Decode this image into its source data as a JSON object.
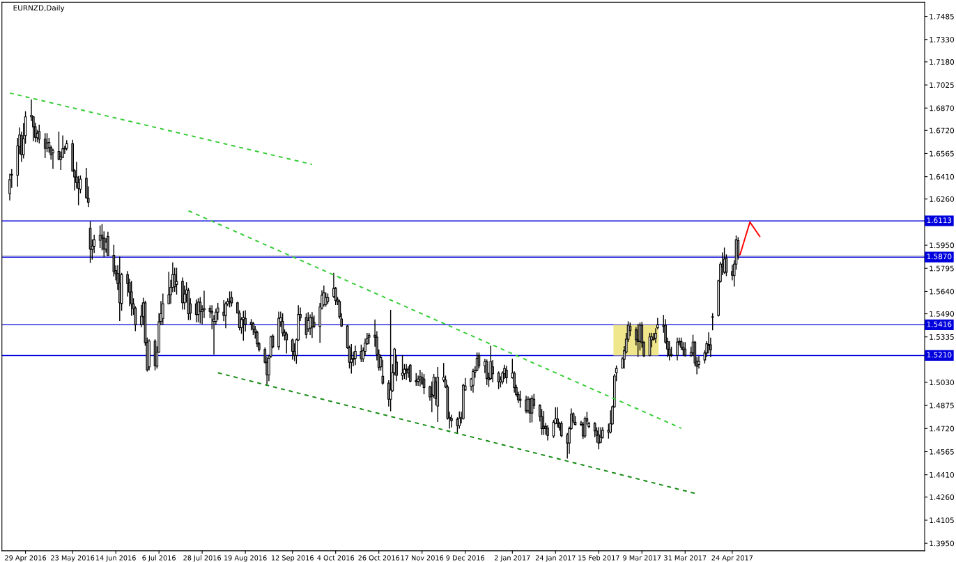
{
  "chart_data": {
    "type": "candlestick",
    "title": "EURNZD,Daily",
    "color": "#000000",
    "colors": [
      "#ffffff",
      "#ffffff",
      "#ffffff",
      "#ffffff",
      "#808080",
      "#ffffff",
      "#ffffff",
      "#ffffff",
      "#808080",
      "#808080",
      "#ffffff",
      "#808080",
      "#808080",
      "#ffffff",
      "#ffffff",
      "#808080",
      "#ffffff",
      "#808080",
      "#ffffff",
      "#ffffff",
      "#ffffff",
      "#ffffff",
      "#808080",
      "#808080",
      "#808080",
      "#808080",
      "#ffffff",
      "#808080",
      "#808080",
      "#808080",
      "#ffffff",
      "#ffffff",
      "#ffffff",
      "#808080",
      "#808080",
      "#ffffff",
      "#808080",
      "#808080",
      "#808080",
      "#808080",
      "#808080",
      "#ffffff",
      "#808080",
      "#808080",
      "#808080",
      "#808080",
      "#808080",
      "#ffffff",
      "#ffffff",
      "#808080",
      "#808080",
      "#ffffff",
      "#808080",
      "#ffffff",
      "#ffffff",
      "#ffffff",
      "#ffffff",
      "#ffffff",
      "#ffffff",
      "#ffffff",
      "#808080",
      "#ffffff",
      "#808080",
      "#ffffff",
      "#ffffff",
      "#808080",
      "#808080",
      "#808080",
      "#ffffff",
      "#808080",
      "#ffffff",
      "#ffffff",
      "#808080",
      "#808080",
      "#ffffff",
      "#ffffff",
      "#ffffff",
      "#808080",
      "#ffffff",
      "#ffffff",
      "#ffffff",
      "#808080",
      "#808080",
      "#808080",
      "#ffffff",
      "#ffffff",
      "#808080",
      "#808080",
      "#808080",
      "#808080",
      "#808080",
      "#808080",
      "#808080",
      "#808080",
      "#ffffff",
      "#ffffff",
      "#808080",
      "#ffffff",
      "#ffffff",
      "#808080",
      "#808080",
      "#808080",
      "#808080",
      "#808080",
      "#ffffff",
      "#ffffff",
      "#808080",
      "#808080",
      "#ffffff",
      "#ffffff",
      "#808080",
      "#808080",
      "#ffffff",
      "#ffffff",
      "#ffffff",
      "#ffffff",
      "#ffffff",
      "#ffffff",
      "#808080",
      "#808080",
      "#808080",
      "#808080",
      "#808080",
      "#808080",
      "#ffffff",
      "#ffffff",
      "#ffffff",
      "#808080",
      "#ffffff",
      "#ffffff",
      "#ffffff",
      "#ffffff",
      "#808080",
      "#808080",
      "#808080",
      "#ffffff",
      "#808080",
      "#808080",
      "#ffffff",
      "#ffffff",
      "#ffffff",
      "#808080",
      "#ffffff",
      "#ffffff",
      "#808080",
      "#808080",
      "#808080",
      "#808080",
      "#ffffff",
      "#ffffff",
      "#808080",
      "#808080",
      "#808080",
      "#808080",
      "#ffffff",
      "#808080",
      "#ffffff",
      "#ffffff",
      "#808080",
      "#808080",
      "#ffffff",
      "#808080",
      "#808080",
      "#ffffff",
      "#ffffff",
      "#ffffff",
      "#ffffff",
      "#ffffff",
      "#ffffff",
      "#ffffff",
      "#ffffff",
      "#808080",
      "#ffffff",
      "#808080",
      "#808080",
      "#ffffff",
      "#808080",
      "#808080",
      "#ffffff",
      "#ffffff",
      "#ffffff",
      "#808080",
      "#ffffff",
      "#808080",
      "#808080",
      "#808080",
      "#808080",
      "#808080",
      "#ffffff",
      "#808080",
      "#ffffff",
      "#808080",
      "#808080",
      "#808080",
      "#808080",
      "#808080",
      "#808080",
      "#ffffff",
      "#ffffff",
      "#808080",
      "#808080",
      "#808080",
      "#808080",
      "#ffffff",
      "#ffffff",
      "#808080",
      "#808080",
      "#ffffff",
      "#808080",
      "#ffffff",
      "#808080",
      "#ffffff",
      "#808080",
      "#808080",
      "#808080",
      "#ffffff",
      "#ffffff",
      "#808080",
      "#ffffff",
      "#ffffff",
      "#ffffff",
      "#ffffff",
      "#ffffff",
      "#ffffff",
      "#ffffff",
      "#ffffff",
      "#808080",
      "#808080",
      "#808080",
      "#ffffff",
      "#808080",
      "#808080",
      "#ffffff",
      "#ffffff",
      "#ffffff",
      "#ffffff",
      "#ffffff",
      "#808080",
      "#808080",
      "#808080",
      "#808080",
      "#808080",
      "#ffffff",
      "#ffffff",
      "#808080",
      "#808080",
      "#808080",
      "#ffffff",
      "#ffffff",
      "#808080",
      "#808080",
      "#ffffff",
      "#ffffff",
      "#ffffff",
      "#ffffff",
      "#808080",
      "#ffffff",
      "#ffffff",
      "#ffffff",
      "#808080",
      "#ffffff",
      "#808080",
      "#808080",
      "#ffffff",
      "#ffffff",
      "#808080"
    ],
    "x": [
      "2016-04-21",
      "2016-04-22",
      "2016-04-25",
      "2016-04-26",
      "2016-04-27",
      "2016-04-28",
      "2016-04-29",
      "2016-05-02",
      "2016-05-03",
      "2016-05-04",
      "2016-05-05",
      "2016-05-06",
      "2016-05-09",
      "2016-05-10",
      "2016-05-11",
      "2016-05-12",
      "2016-05-13",
      "2016-05-16",
      "2016-05-17",
      "2016-05-18",
      "2016-05-19",
      "2016-05-20",
      "2016-05-23",
      "2016-05-24",
      "2016-05-25",
      "2016-05-26",
      "2016-05-27",
      "2016-05-30",
      "2016-05-31",
      "2016-06-01",
      "2016-06-02",
      "2016-06-03",
      "2016-06-06",
      "2016-06-07",
      "2016-06-08",
      "2016-06-09",
      "2016-06-10",
      "2016-06-13",
      "2016-06-14",
      "2016-06-15",
      "2016-06-16",
      "2016-06-17",
      "2016-06-20",
      "2016-06-21",
      "2016-06-22",
      "2016-06-23",
      "2016-06-24",
      "2016-06-27",
      "2016-06-28",
      "2016-06-29",
      "2016-06-30",
      "2016-07-01",
      "2016-07-04",
      "2016-07-05",
      "2016-07-06",
      "2016-07-07",
      "2016-07-08",
      "2016-07-11",
      "2016-07-12",
      "2016-07-13",
      "2016-07-14",
      "2016-07-15",
      "2016-07-18",
      "2016-07-19",
      "2016-07-20",
      "2016-07-21",
      "2016-07-22",
      "2016-07-25",
      "2016-07-26",
      "2016-07-27",
      "2016-07-28",
      "2016-07-29",
      "2016-08-01",
      "2016-08-02",
      "2016-08-03",
      "2016-08-04",
      "2016-08-05",
      "2016-08-08",
      "2016-08-09",
      "2016-08-10",
      "2016-08-11",
      "2016-08-12",
      "2016-08-15",
      "2016-08-16",
      "2016-08-17",
      "2016-08-18",
      "2016-08-19",
      "2016-08-22",
      "2016-08-23",
      "2016-08-24",
      "2016-08-25",
      "2016-08-26",
      "2016-08-29",
      "2016-08-30",
      "2016-08-31",
      "2016-09-01",
      "2016-09-02",
      "2016-09-05",
      "2016-09-06",
      "2016-09-07",
      "2016-09-08",
      "2016-09-09",
      "2016-09-12",
      "2016-09-13",
      "2016-09-14",
      "2016-09-15",
      "2016-09-16",
      "2016-09-19",
      "2016-09-20",
      "2016-09-21",
      "2016-09-22",
      "2016-09-23",
      "2016-09-26",
      "2016-09-27",
      "2016-09-28",
      "2016-09-29",
      "2016-09-30",
      "2016-10-03",
      "2016-10-04",
      "2016-10-05",
      "2016-10-06",
      "2016-10-07",
      "2016-10-10",
      "2016-10-11",
      "2016-10-12",
      "2016-10-13",
      "2016-10-14",
      "2016-10-17",
      "2016-10-18",
      "2016-10-19",
      "2016-10-20",
      "2016-10-21",
      "2016-10-24",
      "2016-10-25",
      "2016-10-26",
      "2016-10-27",
      "2016-10-28",
      "2016-10-31",
      "2016-11-01",
      "2016-11-02",
      "2016-11-03",
      "2016-11-04",
      "2016-11-07",
      "2016-11-08",
      "2016-11-09",
      "2016-11-10",
      "2016-11-11",
      "2016-11-14",
      "2016-11-15",
      "2016-11-16",
      "2016-11-17",
      "2016-11-18",
      "2016-11-21",
      "2016-11-22",
      "2016-11-23",
      "2016-11-24",
      "2016-11-25",
      "2016-11-28",
      "2016-11-29",
      "2016-11-30",
      "2016-12-01",
      "2016-12-02",
      "2016-12-05",
      "2016-12-06",
      "2016-12-07",
      "2016-12-08",
      "2016-12-09",
      "2016-12-12",
      "2016-12-13",
      "2016-12-14",
      "2016-12-15",
      "2016-12-16",
      "2016-12-19",
      "2016-12-20",
      "2016-12-21",
      "2016-12-22",
      "2016-12-23",
      "2016-12-26",
      "2016-12-27",
      "2016-12-28",
      "2016-12-29",
      "2016-12-30",
      "2017-01-02",
      "2017-01-03",
      "2017-01-04",
      "2017-01-05",
      "2017-01-06",
      "2017-01-09",
      "2017-01-10",
      "2017-01-11",
      "2017-01-12",
      "2017-01-13",
      "2017-01-16",
      "2017-01-17",
      "2017-01-18",
      "2017-01-19",
      "2017-01-20",
      "2017-01-23",
      "2017-01-24",
      "2017-01-25",
      "2017-01-26",
      "2017-01-27",
      "2017-01-30",
      "2017-01-31",
      "2017-02-01",
      "2017-02-02",
      "2017-02-03",
      "2017-02-06",
      "2017-02-07",
      "2017-02-08",
      "2017-02-09",
      "2017-02-10",
      "2017-02-13",
      "2017-02-14",
      "2017-02-15",
      "2017-02-16",
      "2017-02-17",
      "2017-02-20",
      "2017-02-21",
      "2017-02-22",
      "2017-02-23",
      "2017-02-24",
      "2017-02-27",
      "2017-02-28",
      "2017-03-01",
      "2017-03-02",
      "2017-03-03",
      "2017-03-06",
      "2017-03-07",
      "2017-03-08",
      "2017-03-09",
      "2017-03-10",
      "2017-03-13",
      "2017-03-14",
      "2017-03-15",
      "2017-03-16",
      "2017-03-17",
      "2017-03-20",
      "2017-03-21",
      "2017-03-22",
      "2017-03-23",
      "2017-03-24",
      "2017-03-27",
      "2017-03-28",
      "2017-03-29",
      "2017-03-30",
      "2017-03-31",
      "2017-04-03",
      "2017-04-04",
      "2017-04-05",
      "2017-04-06",
      "2017-04-07",
      "2017-04-10",
      "2017-04-11",
      "2017-04-12",
      "2017-04-13",
      "2017-04-14",
      "2017-04-17",
      "2017-04-18",
      "2017-04-19",
      "2017-04-20",
      "2017-04-21",
      "2017-04-24",
      "2017-04-25",
      "2017-04-26",
      "2017-04-27"
    ],
    "ohlc": [
      [
        1.6296,
        1.6427,
        1.6254,
        1.6389
      ],
      [
        1.642,
        1.6458,
        1.6338,
        1.6425
      ],
      [
        1.6419,
        1.6667,
        1.6346,
        1.6616
      ],
      [
        1.6613,
        1.6737,
        1.6563,
        1.669
      ],
      [
        1.6685,
        1.6709,
        1.6512,
        1.6558
      ],
      [
        1.6558,
        1.6765,
        1.6535,
        1.6664
      ],
      [
        1.6685,
        1.6845,
        1.6633,
        1.6811
      ],
      [
        1.6811,
        1.6925,
        1.6786,
        1.6822
      ],
      [
        1.6811,
        1.6814,
        1.6651,
        1.6744
      ],
      [
        1.6744,
        1.6768,
        1.6644,
        1.6674
      ],
      [
        1.6671,
        1.6721,
        1.6644,
        1.6701
      ],
      [
        1.6713,
        1.6755,
        1.6636,
        1.6662
      ],
      [
        1.6662,
        1.6698,
        1.6538,
        1.66
      ],
      [
        1.66,
        1.6698,
        1.6579,
        1.6636
      ],
      [
        1.6605,
        1.6667,
        1.6574,
        1.6639
      ],
      [
        1.6605,
        1.6616,
        1.6527,
        1.6558
      ],
      [
        1.657,
        1.6594,
        1.6465,
        1.6585
      ],
      [
        1.6579,
        1.6709,
        1.6523,
        1.6527
      ],
      [
        1.6527,
        1.6574,
        1.6458,
        1.6543
      ],
      [
        1.654,
        1.6683,
        1.654,
        1.6597
      ],
      [
        1.6595,
        1.6613,
        1.6566,
        1.66
      ],
      [
        1.66,
        1.6651,
        1.6589,
        1.6631
      ],
      [
        1.6631,
        1.6654,
        1.6447,
        1.6447
      ],
      [
        1.645,
        1.6458,
        1.6321,
        1.6408
      ],
      [
        1.6408,
        1.6505,
        1.6334,
        1.637
      ],
      [
        1.637,
        1.6411,
        1.6221,
        1.6331
      ],
      [
        1.6326,
        1.6414,
        1.6302,
        1.6393
      ],
      [
        1.6399,
        1.6466,
        1.6265,
        1.6268
      ],
      [
        1.6265,
        1.6342,
        1.621,
        1.6238
      ],
      [
        1.6063,
        1.6105,
        1.5834,
        1.5924
      ],
      [
        1.5922,
        1.5986,
        1.5857,
        1.5944
      ],
      [
        1.5943,
        1.6017,
        1.5901,
        1.5986
      ],
      [
        1.5983,
        1.6079,
        1.5935,
        1.6017
      ],
      [
        1.6017,
        1.6089,
        1.5919,
        1.5998
      ],
      [
        1.5998,
        1.604,
        1.5873,
        1.5924
      ],
      [
        1.5924,
        1.5994,
        1.5904,
        1.5971
      ],
      [
        1.6009,
        1.6037,
        1.5882,
        1.5882
      ],
      [
        1.5882,
        1.595,
        1.5743,
        1.5773
      ],
      [
        1.578,
        1.5811,
        1.5718,
        1.5758
      ],
      [
        1.5761,
        1.5813,
        1.5653,
        1.5692
      ],
      [
        1.5696,
        1.587,
        1.5444,
        1.5564
      ],
      [
        1.556,
        1.5761,
        1.5513,
        1.5753
      ],
      [
        1.5753,
        1.5773,
        1.5609,
        1.5692
      ],
      [
        1.5699,
        1.5722,
        1.5544,
        1.5634
      ],
      [
        1.5637,
        1.5707,
        1.5479,
        1.5557
      ],
      [
        1.5557,
        1.5591,
        1.5485,
        1.5524
      ],
      [
        1.5529,
        1.5536,
        1.5377,
        1.5417
      ],
      [
        1.5417,
        1.5547,
        1.5402,
        1.5474
      ],
      [
        1.547,
        1.5594,
        1.5417,
        1.5563
      ],
      [
        1.5563,
        1.5575,
        1.5278,
        1.5297
      ],
      [
        1.5297,
        1.5327,
        1.5106,
        1.5114
      ],
      [
        1.5134,
        1.5315,
        1.5114,
        1.5307
      ],
      [
        1.5307,
        1.5315,
        1.5114,
        1.5141
      ],
      [
        1.5139,
        1.5269,
        1.5126,
        1.5232
      ],
      [
        1.5232,
        1.549,
        1.5232,
        1.5436
      ],
      [
        1.5439,
        1.5572,
        1.5417,
        1.549
      ],
      [
        1.5459,
        1.5622,
        1.542,
        1.5557
      ],
      [
        1.5557,
        1.5769,
        1.5557,
        1.5617
      ],
      [
        1.5617,
        1.5715,
        1.556,
        1.5668
      ],
      [
        1.5668,
        1.5831,
        1.5637,
        1.5753
      ],
      [
        1.5753,
        1.5795,
        1.5641,
        1.5671
      ],
      [
        1.5687,
        1.5795,
        1.5622,
        1.5707
      ],
      [
        1.5707,
        1.573,
        1.5521,
        1.5564
      ],
      [
        1.5564,
        1.5676,
        1.5521,
        1.5622
      ],
      [
        1.5622,
        1.5699,
        1.5568,
        1.565
      ],
      [
        1.5645,
        1.566,
        1.5451,
        1.549
      ],
      [
        1.5557,
        1.5591,
        1.5451,
        1.5495
      ],
      [
        1.5557,
        1.5583,
        1.5436,
        1.5485
      ],
      [
        1.5485,
        1.5591,
        1.5436,
        1.5568
      ],
      [
        1.5568,
        1.5599,
        1.5428,
        1.5506
      ],
      [
        1.5506,
        1.5544,
        1.5423,
        1.5517
      ],
      [
        1.5517,
        1.5641,
        1.5464,
        1.5526
      ],
      [
        1.5526,
        1.5544,
        1.5464,
        1.5506
      ],
      [
        1.5506,
        1.5544,
        1.539,
        1.5495
      ],
      [
        1.5439,
        1.5479,
        1.5219,
        1.5454
      ],
      [
        1.5439,
        1.5521,
        1.542,
        1.5501
      ],
      [
        1.5501,
        1.556,
        1.5451,
        1.5529
      ],
      [
        1.5501,
        1.5578,
        1.5443,
        1.5479
      ],
      [
        1.5479,
        1.5568,
        1.5397,
        1.5557
      ],
      [
        1.5557,
        1.5591,
        1.5545,
        1.5572
      ],
      [
        1.5568,
        1.5637,
        1.5536,
        1.5575
      ],
      [
        1.5599,
        1.5637,
        1.5541,
        1.5563
      ],
      [
        1.5563,
        1.5568,
        1.5495,
        1.5495
      ],
      [
        1.5495,
        1.551,
        1.5382,
        1.5397
      ],
      [
        1.5397,
        1.5464,
        1.5359,
        1.5451
      ],
      [
        1.5451,
        1.5506,
        1.5312,
        1.5464
      ],
      [
        1.5459,
        1.551,
        1.5374,
        1.542
      ],
      [
        1.5433,
        1.5451,
        1.5382,
        1.542
      ],
      [
        1.5423,
        1.5433,
        1.5351,
        1.5386
      ],
      [
        1.5386,
        1.5405,
        1.5327,
        1.5366
      ],
      [
        1.5366,
        1.5374,
        1.527,
        1.5289
      ],
      [
        1.5289,
        1.5297,
        1.524,
        1.525
      ],
      [
        1.525,
        1.5262,
        1.516,
        1.5165
      ],
      [
        1.5165,
        1.52,
        1.5018,
        1.508
      ],
      [
        1.508,
        1.5211,
        1.5041,
        1.5191
      ],
      [
        1.5206,
        1.534,
        1.5197,
        1.5335
      ],
      [
        1.534,
        1.5349,
        1.5261,
        1.5269
      ],
      [
        1.5269,
        1.5501,
        1.525,
        1.5459
      ],
      [
        1.5436,
        1.5501,
        1.5405,
        1.5464
      ],
      [
        1.5439,
        1.549,
        1.534,
        1.5362
      ],
      [
        1.5366,
        1.5382,
        1.5315,
        1.5346
      ],
      [
        1.5355,
        1.5366,
        1.5227,
        1.5315
      ],
      [
        1.5315,
        1.532,
        1.5185,
        1.5238
      ],
      [
        1.5238,
        1.5289,
        1.5176,
        1.5211
      ],
      [
        1.5211,
        1.532,
        1.5157,
        1.5315
      ],
      [
        1.5315,
        1.5544,
        1.531,
        1.5485
      ],
      [
        1.5485,
        1.5529,
        1.5444,
        1.5464
      ],
      [
        1.5464,
        1.549,
        1.5327,
        1.5351
      ],
      [
        1.539,
        1.5498,
        1.5371,
        1.5444
      ],
      [
        1.5394,
        1.5482,
        1.5351,
        1.5464
      ],
      [
        1.5464,
        1.5498,
        1.5331,
        1.5402
      ],
      [
        1.5433,
        1.5475,
        1.5397,
        1.5405
      ],
      [
        1.5405,
        1.556,
        1.5299,
        1.5536
      ],
      [
        1.5529,
        1.5645,
        1.5521,
        1.5614
      ],
      [
        1.5552,
        1.5676,
        1.5541,
        1.563
      ],
      [
        1.5552,
        1.563,
        1.5541,
        1.5599
      ],
      [
        1.5572,
        1.5623,
        1.556,
        1.5599
      ],
      [
        1.5606,
        1.5761,
        1.56,
        1.566
      ],
      [
        1.566,
        1.5667,
        1.5552,
        1.5578
      ],
      [
        1.5583,
        1.5599,
        1.5552,
        1.5571
      ],
      [
        1.5572,
        1.558,
        1.546,
        1.547
      ],
      [
        1.5455,
        1.549,
        1.5405,
        1.5408
      ],
      [
        1.5408,
        1.5413,
        1.5258,
        1.5262
      ],
      [
        1.5262,
        1.5273,
        1.5126,
        1.5165
      ],
      [
        1.5165,
        1.5284,
        1.5092,
        1.5185
      ],
      [
        1.5185,
        1.5234,
        1.5141,
        1.5191
      ],
      [
        1.5191,
        1.5273,
        1.5149,
        1.5238
      ],
      [
        1.5238,
        1.528,
        1.5169,
        1.5188
      ],
      [
        1.5188,
        1.5262,
        1.5169,
        1.5242
      ],
      [
        1.5238,
        1.532,
        1.5211,
        1.5293
      ],
      [
        1.5289,
        1.5359,
        1.5285,
        1.5325
      ],
      [
        1.5333,
        1.5359,
        1.5289,
        1.5346
      ],
      [
        1.5346,
        1.5448,
        1.5273,
        1.5333
      ],
      [
        1.5333,
        1.537,
        1.5181,
        1.5219
      ],
      [
        1.5219,
        1.5247,
        1.5111,
        1.5129
      ],
      [
        1.5134,
        1.521,
        1.5111,
        1.5196
      ],
      [
        1.5071,
        1.5178,
        1.5017,
        1.5025
      ],
      [
        1.5025,
        1.5041,
        1.4871,
        1.4917
      ],
      [
        1.4917,
        1.5513,
        1.4839,
        1.4979
      ],
      [
        1.4974,
        1.5149,
        1.4969,
        1.5095
      ],
      [
        1.5095,
        1.5258,
        1.508,
        1.5253
      ],
      [
        1.5165,
        1.521,
        1.5041,
        1.5077
      ],
      [
        1.5077,
        1.521,
        1.5048,
        1.5092
      ],
      [
        1.5088,
        1.5149,
        1.5056,
        1.5118
      ],
      [
        1.5118,
        1.515,
        1.5048,
        1.5111
      ],
      [
        1.5118,
        1.5134,
        1.5064,
        1.5092
      ],
      [
        1.5145,
        1.515,
        1.5033,
        1.5037
      ],
      [
        1.5041,
        1.5089,
        1.501,
        1.5033
      ],
      [
        1.5037,
        1.5072,
        1.501,
        1.5052
      ],
      [
        1.5052,
        1.5111,
        1.5005,
        1.5067
      ],
      [
        1.5064,
        1.5095,
        1.5015,
        1.5025
      ],
      [
        1.5052,
        1.5083,
        1.4953,
        1.4995
      ],
      [
        1.4999,
        1.5005,
        1.4909,
        1.4932
      ],
      [
        1.4948,
        1.5033,
        1.4832,
        1.4937
      ],
      [
        1.4943,
        1.5083,
        1.4927,
        1.5064
      ],
      [
        1.5033,
        1.5064,
        1.4878,
        1.4922
      ],
      [
        1.4871,
        1.5129,
        1.4767,
        1.5064
      ],
      [
        1.5045,
        1.5157,
        1.5033,
        1.5064
      ],
      [
        1.5045,
        1.5072,
        1.4995,
        1.4999
      ],
      [
        1.4999,
        1.501,
        1.4783,
        1.4788
      ],
      [
        1.4788,
        1.4829,
        1.4723,
        1.4795
      ],
      [
        1.4788,
        1.4809,
        1.4731,
        1.4773
      ],
      [
        1.4782,
        1.4792,
        1.4693,
        1.4739
      ],
      [
        1.4739,
        1.4832,
        1.4723,
        1.4788
      ],
      [
        1.4788,
        1.4829,
        1.4758,
        1.4795
      ],
      [
        1.4786,
        1.5018,
        1.4783,
        1.501
      ],
      [
        1.4979,
        1.5056,
        1.4977,
        1.5005
      ],
      [
        1.5002,
        1.5056,
        1.4977,
        1.5052
      ],
      [
        1.501,
        1.5118,
        1.4964,
        1.5103
      ],
      [
        1.5098,
        1.5134,
        1.5064,
        1.5111
      ],
      [
        1.5111,
        1.5227,
        1.5108,
        1.5191
      ],
      [
        1.5211,
        1.5227,
        1.5126,
        1.5141
      ],
      [
        1.5141,
        1.5185,
        1.5095,
        1.5169
      ],
      [
        1.5169,
        1.518,
        1.5015,
        1.5056
      ],
      [
        1.5061,
        1.5092,
        1.5002,
        1.5048
      ],
      [
        1.5056,
        1.5273,
        1.5048,
        1.5169
      ],
      [
        1.5134,
        1.5176,
        1.5033,
        1.5088
      ],
      [
        1.5092,
        1.51,
        1.4987,
        1.5033
      ],
      [
        1.5033,
        1.5067,
        1.4999,
        1.5045
      ],
      [
        1.5033,
        1.51,
        1.5021,
        1.5092
      ],
      [
        1.5088,
        1.5145,
        1.5056,
        1.5123
      ],
      [
        1.5111,
        1.5138,
        1.5025,
        1.5061
      ],
      [
        1.5061,
        1.5185,
        1.5058,
        1.5092
      ],
      [
        1.5092,
        1.51,
        1.4964,
        1.4995
      ],
      [
        1.4995,
        1.501,
        1.4937,
        1.4948
      ],
      [
        1.4948,
        1.4964,
        1.4894,
        1.4912
      ],
      [
        1.4917,
        1.4971,
        1.4863,
        1.4909
      ],
      [
        1.4912,
        1.4937,
        1.4825,
        1.4839
      ],
      [
        1.4839,
        1.4932,
        1.4825,
        1.4917
      ],
      [
        1.4917,
        1.4925,
        1.4762,
        1.4824
      ],
      [
        1.4824,
        1.494,
        1.4765,
        1.4922
      ],
      [
        1.4917,
        1.495,
        1.4856,
        1.4875
      ],
      [
        1.4875,
        1.488,
        1.477,
        1.4801
      ],
      [
        1.4801,
        1.4847,
        1.468,
        1.472
      ],
      [
        1.4735,
        1.4835,
        1.468,
        1.472
      ],
      [
        1.4735,
        1.4755,
        1.4682,
        1.472
      ],
      [
        1.4723,
        1.474,
        1.4643,
        1.4674
      ],
      [
        1.467,
        1.4775,
        1.466,
        1.4762
      ],
      [
        1.4754,
        1.486,
        1.4752,
        1.4785
      ],
      [
        1.4785,
        1.486,
        1.4731,
        1.4754
      ],
      [
        1.4754,
        1.4762,
        1.4708,
        1.4727
      ],
      [
        1.4754,
        1.4765,
        1.4665,
        1.4672
      ],
      [
        1.4677,
        1.4687,
        1.4522,
        1.4623
      ],
      [
        1.4623,
        1.473,
        1.4553,
        1.472
      ],
      [
        1.472,
        1.4851,
        1.4715,
        1.4816
      ],
      [
        1.482,
        1.4825,
        1.476,
        1.477
      ],
      [
        1.4762,
        1.4801,
        1.4745,
        1.4747
      ],
      [
        1.4747,
        1.477,
        1.474,
        1.4758
      ],
      [
        1.4747,
        1.476,
        1.4654,
        1.467
      ],
      [
        1.467,
        1.4797,
        1.466,
        1.4788
      ],
      [
        1.4788,
        1.4829,
        1.475,
        1.477
      ],
      [
        1.4734,
        1.4762,
        1.4725,
        1.4754
      ],
      [
        1.4754,
        1.476,
        1.4665,
        1.4704
      ],
      [
        1.4704,
        1.4725,
        1.4628,
        1.4674
      ],
      [
        1.4677,
        1.4727,
        1.4584,
        1.4623
      ],
      [
        1.4628,
        1.4725,
        1.4625,
        1.4661
      ],
      [
        1.4661,
        1.4727,
        1.4656,
        1.4708
      ],
      [
        1.4708,
        1.475,
        1.4656,
        1.4696
      ],
      [
        1.4696,
        1.4839,
        1.469,
        1.4754
      ],
      [
        1.4751,
        1.487,
        1.475,
        1.4866
      ],
      [
        1.4866,
        1.5083,
        1.4863,
        1.5072
      ],
      [
        1.5095,
        1.514,
        1.5041,
        1.5123
      ],
      [
        1.5126,
        1.5196,
        1.5126,
        1.5188
      ],
      [
        1.5185,
        1.527,
        1.5126,
        1.5242
      ],
      [
        1.5234,
        1.5359,
        1.5227,
        1.532
      ],
      [
        1.532,
        1.5436,
        1.5304,
        1.5413
      ],
      [
        1.5405,
        1.5428,
        1.5343,
        1.5377
      ],
      [
        1.5382,
        1.5397,
        1.5281,
        1.5315
      ],
      [
        1.5315,
        1.542,
        1.5203,
        1.5304
      ],
      [
        1.5304,
        1.5428,
        1.5247,
        1.5413
      ],
      [
        1.5413,
        1.5432,
        1.5266,
        1.5297
      ],
      [
        1.5297,
        1.5304,
        1.5203,
        1.5208
      ],
      [
        1.5211,
        1.5359,
        1.5208,
        1.5335
      ],
      [
        1.5315,
        1.5359,
        1.5269,
        1.5335
      ],
      [
        1.532,
        1.5359,
        1.5312,
        1.5327
      ],
      [
        1.5327,
        1.539,
        1.5297,
        1.5359
      ],
      [
        1.5397,
        1.5459,
        1.539,
        1.5416
      ],
      [
        1.5413,
        1.5479,
        1.5366,
        1.5405
      ],
      [
        1.5413,
        1.5451,
        1.5293,
        1.53
      ],
      [
        1.5304,
        1.5327,
        1.5203,
        1.5253
      ],
      [
        1.5253,
        1.5304,
        1.5181,
        1.5211
      ],
      [
        1.5219,
        1.5266,
        1.5203,
        1.5211
      ],
      [
        1.5211,
        1.5327,
        1.5181,
        1.53
      ],
      [
        1.5297,
        1.5327,
        1.5281,
        1.5304
      ],
      [
        1.5304,
        1.5327,
        1.525,
        1.5266
      ],
      [
        1.5266,
        1.5297,
        1.5211,
        1.5247
      ],
      [
        1.5253,
        1.5297,
        1.5205,
        1.5211
      ],
      [
        1.5211,
        1.5266,
        1.5203,
        1.5231
      ],
      [
        1.5227,
        1.5346,
        1.5211,
        1.53
      ],
      [
        1.53,
        1.5304,
        1.5141,
        1.516
      ],
      [
        1.5172,
        1.5196,
        1.5087,
        1.5138
      ],
      [
        1.515,
        1.5203,
        1.5126,
        1.5172
      ],
      [
        1.518,
        1.5242,
        1.516,
        1.5227
      ],
      [
        1.5227,
        1.5304,
        1.5203,
        1.5289
      ],
      [
        1.5278,
        1.5362,
        1.5227,
        1.5284
      ],
      [
        1.5281,
        1.5327,
        1.5203,
        1.5247
      ],
      [
        1.5467,
        1.549,
        1.5382,
        1.547
      ],
      [
        1.5479,
        1.5715,
        1.5475,
        1.5712
      ],
      [
        1.5707,
        1.5836,
        1.5702,
        1.5823
      ],
      [
        1.5823,
        1.5898,
        1.5753,
        1.5805
      ],
      [
        1.5769,
        1.5931,
        1.5761,
        1.5857
      ],
      [
        1.5862,
        1.5885,
        1.5746,
        1.5769
      ],
      [
        1.5773,
        1.5815,
        1.5718,
        1.5749
      ],
      [
        1.5746,
        1.5846,
        1.5676,
        1.5823
      ],
      [
        1.5823,
        1.6012,
        1.5789,
        1.5986
      ],
      [
        1.5981,
        1.6001,
        1.5857,
        1.5878
      ]
    ],
    "series": [
      {
        "type": "bar",
        "color": "#f0e68c",
        "x": [
          "2017-03-06"
        ],
        "values": [
          0.0206
        ],
        "base": [
          1.521
        ]
      },
      {
        "type": "line",
        "color": "#33cc33",
        "line_style": "dashed",
        "x": [
          "2016-04-21",
          "2016-09-22"
        ],
        "values": [
          1.6971,
          1.6492
        ]
      },
      {
        "type": "line",
        "color": "#33cc33",
        "line_style": "dashed",
        "x": [
          "2016-07-21",
          "2017-03-29"
        ],
        "values": [
          1.6181,
          1.4722
        ]
      },
      {
        "type": "line",
        "color": "#138a13",
        "line_style": "dashed",
        "x": [
          "2016-08-05",
          "2017-04-05"
        ],
        "values": [
          1.5094,
          1.4285
        ]
      },
      {
        "type": "line",
        "color": "#ff0000",
        "line_style": "solid",
        "x": [
          "2017-04-28",
          "2017-05-03",
          "2017-05-08"
        ],
        "values": [
          1.5888,
          1.6105,
          1.6009
        ]
      }
    ],
    "ref_lines": [
      {
        "axis": "y",
        "value": 1.6113,
        "label": "1.6113",
        "color": "#0000dd"
      },
      {
        "axis": "y",
        "value": 1.588,
        "color": "#c0c0c0"
      },
      {
        "axis": "y",
        "value": 1.587,
        "label": "1.5870",
        "color": "#0000dd"
      },
      {
        "axis": "y",
        "value": 1.5416,
        "label": "1.5416",
        "color": "#0000dd"
      },
      {
        "axis": "y",
        "value": 1.521,
        "label": "1.5210",
        "color": "#0000dd"
      }
    ],
    "xlim": [
      "2016-04-17",
      "2017-07-31"
    ],
    "xticks": [
      {
        "value": "2016-04-29",
        "label": "29 Apr 2016"
      },
      {
        "value": "2016-05-23",
        "label": "23 May 2016"
      },
      {
        "value": "2016-06-14",
        "label": "14 Jun 2016"
      },
      {
        "value": "2016-07-06",
        "label": "6 Jul 2016"
      },
      {
        "value": "2016-07-28",
        "label": "28 Jul 2016"
      },
      {
        "value": "2016-08-19",
        "label": "19 Aug 2016"
      },
      {
        "value": "2016-09-12",
        "label": "12 Sep 2016"
      },
      {
        "value": "2016-10-04",
        "label": "4 Oct 2016"
      },
      {
        "value": "2016-10-26",
        "label": "26 Oct 2016"
      },
      {
        "value": "2016-11-17",
        "label": "17 Nov 2016"
      },
      {
        "value": "2016-12-09",
        "label": "9 Dec 2016"
      },
      {
        "value": "2017-01-02",
        "label": "2 Jan 2017"
      },
      {
        "value": "2017-01-24",
        "label": "24 Jan 2017"
      },
      {
        "value": "2017-02-15",
        "label": "15 Feb 2017"
      },
      {
        "value": "2017-03-09",
        "label": "9 Mar 2017"
      },
      {
        "value": "2017-03-31",
        "label": "31 Mar 2017"
      },
      {
        "value": "2017-04-24",
        "label": "24 Apr 2017"
      }
    ],
    "ylim": [
      1.39,
      1.758
    ],
    "yticks": [
      {
        "value": 1.7485,
        "label": "1.7485"
      },
      {
        "value": 1.733,
        "label": "1.7330"
      },
      {
        "value": 1.718,
        "label": "1.7180"
      },
      {
        "value": 1.7025,
        "label": "1.7025"
      },
      {
        "value": 1.687,
        "label": "1.6870"
      },
      {
        "value": 1.672,
        "label": "1.6720"
      },
      {
        "value": 1.6565,
        "label": "1.6565"
      },
      {
        "value": 1.641,
        "label": "1.6410"
      },
      {
        "value": 1.626,
        "label": "1.6260"
      },
      {
        "value": 1.595,
        "label": "1.5950"
      },
      {
        "value": 1.5795,
        "label": "1.5795"
      },
      {
        "value": 1.564,
        "label": "1.5640"
      },
      {
        "value": 1.549,
        "label": "1.5490"
      },
      {
        "value": 1.5335,
        "label": "1.5335"
      },
      {
        "value": 1.518,
        "label": null
      },
      {
        "value": 1.503,
        "label": "1.5030"
      },
      {
        "value": 1.4875,
        "label": "1.4875"
      },
      {
        "value": 1.472,
        "label": "1.4720"
      },
      {
        "value": 1.4565,
        "label": "1.4565"
      },
      {
        "value": 1.441,
        "label": "1.4410"
      },
      {
        "value": 1.426,
        "label": "1.4260"
      },
      {
        "value": 1.4105,
        "label": "1.4105"
      },
      {
        "value": 1.395,
        "label": "1.3950"
      }
    ]
  }
}
